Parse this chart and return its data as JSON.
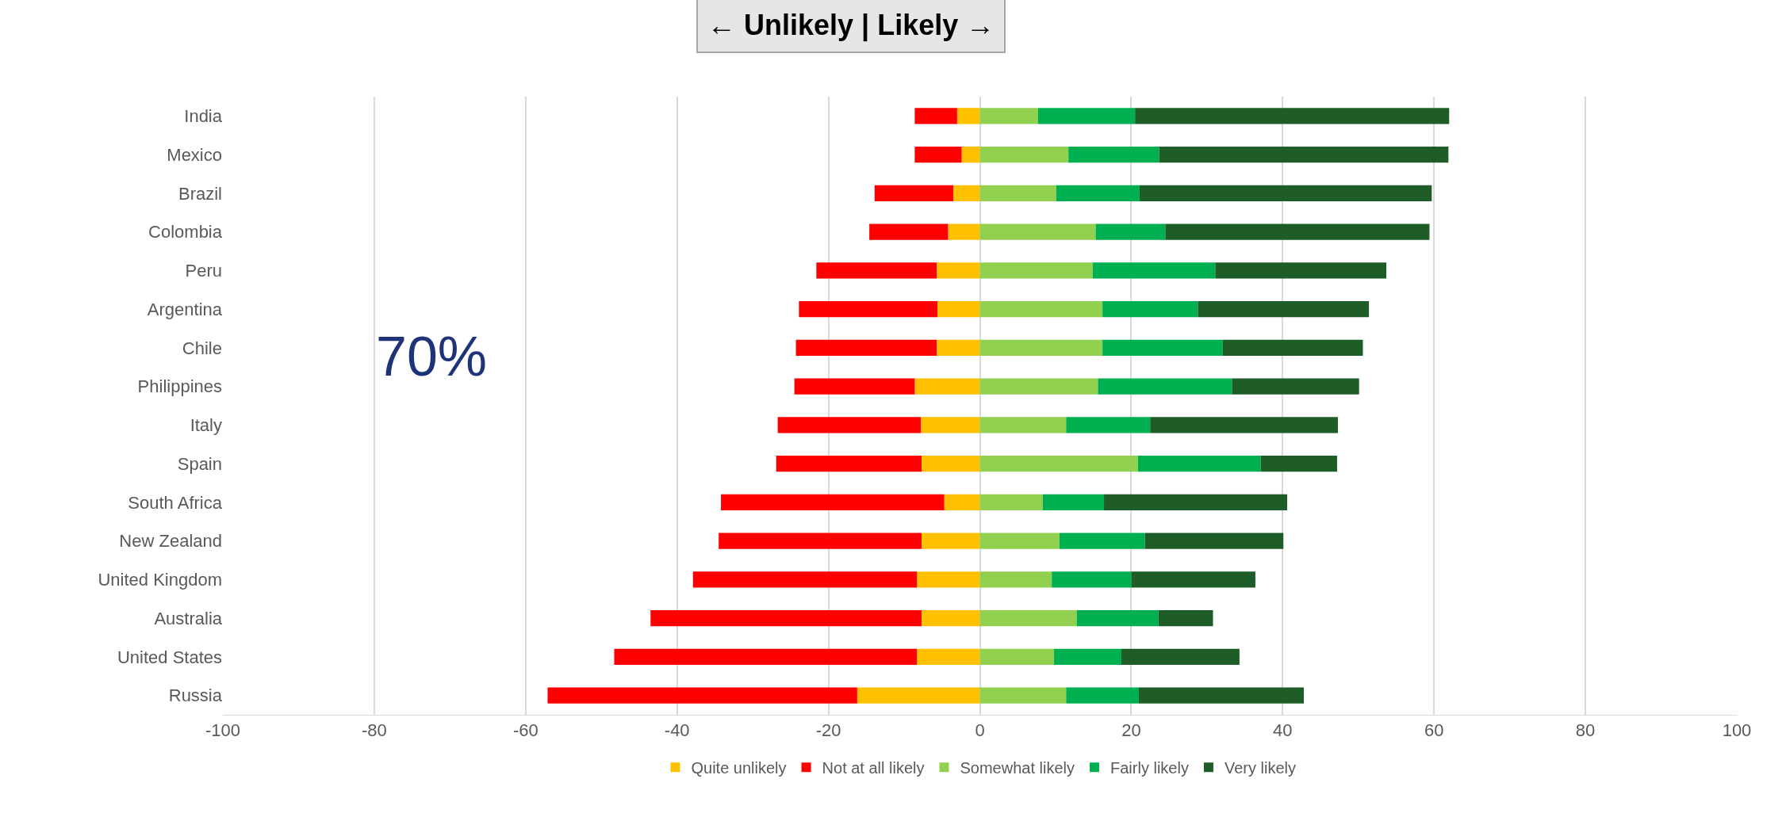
{
  "chart_data": {
    "type": "bar",
    "orientation": "horizontal",
    "stacked": true,
    "title": "← Unlikely | Likely →",
    "annotations": [
      "70%"
    ],
    "categories": [
      "India",
      "Mexico",
      "Brazil",
      "Colombia",
      "Peru",
      "Argentina",
      "Chile",
      "Philippines",
      "Italy",
      "Spain",
      "South Africa",
      "New Zealand",
      "United Kingdom",
      "Australia",
      "United States",
      "Russia"
    ],
    "series": [
      {
        "name": "Quite unlikely",
        "color": "#ffc000",
        "values": [
          -3.0,
          -2.4,
          -3.5,
          -4.2,
          -5.7,
          -5.6,
          -5.7,
          -8.6,
          -7.8,
          -7.7,
          -4.7,
          -7.7,
          -8.3,
          -7.7,
          -8.3,
          -16.2
        ]
      },
      {
        "name": "Not at all likely",
        "color": "#ff0000",
        "values": [
          -5.6,
          -6.2,
          -10.4,
          -10.4,
          -15.9,
          -18.3,
          -18.6,
          -15.9,
          -18.9,
          -19.2,
          -29.5,
          -26.8,
          -29.6,
          -35.8,
          -40.0,
          -40.9
        ]
      },
      {
        "name": "Somewhat likely",
        "color": "#92d050",
        "values": [
          7.7,
          11.7,
          10.1,
          15.3,
          14.9,
          16.2,
          16.2,
          15.6,
          11.4,
          20.9,
          8.3,
          10.5,
          9.5,
          12.8,
          9.8,
          11.4
        ]
      },
      {
        "name": "Fairly likely",
        "color": "#00b050",
        "values": [
          12.8,
          12.0,
          11.0,
          9.2,
          16.2,
          12.6,
          15.9,
          17.7,
          11.1,
          16.2,
          8.1,
          11.3,
          10.5,
          10.8,
          8.9,
          9.6
        ]
      },
      {
        "name": "Very likely",
        "color": "#1e5c28",
        "values": [
          41.5,
          38.2,
          38.6,
          34.9,
          22.6,
          22.6,
          18.5,
          16.8,
          24.8,
          10.1,
          24.2,
          18.3,
          16.4,
          7.2,
          15.6,
          21.8
        ]
      }
    ],
    "xlim": [
      -100,
      100
    ],
    "xticks": [
      -100,
      -80,
      -60,
      -40,
      -20,
      0,
      20,
      40,
      60,
      80,
      100
    ],
    "grid": "x",
    "legend": "bottom"
  }
}
